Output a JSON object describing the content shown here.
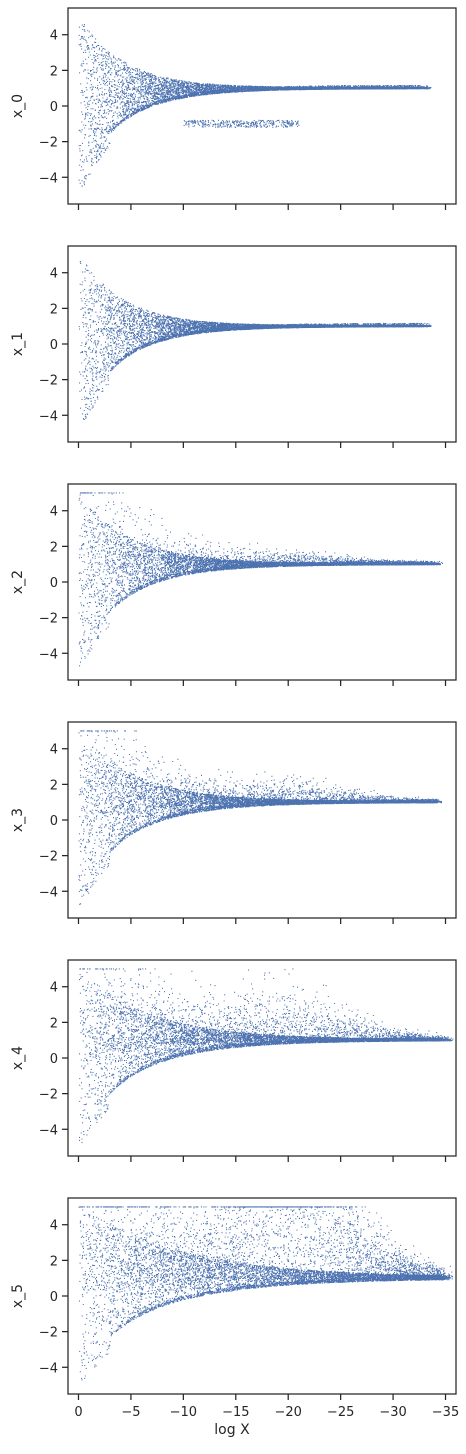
{
  "chart_data": {
    "type": "scatter",
    "layout": "6 vertically stacked panels with shared x-axis",
    "xlabel": "log X",
    "x_ticks": [
      0,
      -5,
      -10,
      -15,
      -20,
      -25,
      -30,
      -35
    ],
    "x_tick_labels": [
      "0",
      "−5",
      "−10",
      "−15",
      "−20",
      "−25",
      "−30",
      "−35"
    ],
    "xlim": [
      1,
      -36
    ],
    "y_ticks": [
      -4,
      -2,
      0,
      2,
      4
    ],
    "y_tick_labels": [
      "−4",
      "−2",
      "0",
      "2",
      "4"
    ],
    "ylim": [
      -5.5,
      5.5
    ],
    "grid": false,
    "marker_color": "#4c72b0",
    "panels": [
      {
        "ylabel": "x_0",
        "trend": {
          "end_x": -33,
          "end_y": 1.0,
          "spread_decay": 4.5,
          "upper_bump": 0.0,
          "lower_branch": true
        }
      },
      {
        "ylabel": "x_1",
        "trend": {
          "end_x": -33,
          "end_y": 1.0,
          "spread_decay": 4.5,
          "upper_bump": 0.0,
          "lower_branch": false
        }
      },
      {
        "ylabel": "x_2",
        "trend": {
          "end_x": -34,
          "end_y": 1.0,
          "spread_decay": 5.0,
          "upper_bump": 0.2,
          "lower_branch": false
        }
      },
      {
        "ylabel": "x_3",
        "trend": {
          "end_x": -34,
          "end_y": 1.0,
          "spread_decay": 5.5,
          "upper_bump": 0.4,
          "lower_branch": false
        }
      },
      {
        "ylabel": "x_4",
        "trend": {
          "end_x": -35,
          "end_y": 1.0,
          "spread_decay": 6.5,
          "upper_bump": 1.0,
          "lower_branch": false
        }
      },
      {
        "ylabel": "x_5",
        "trend": {
          "end_x": -35,
          "end_y": 1.0,
          "spread_decay": 9.0,
          "upper_bump": 3.5,
          "lower_branch": false
        }
      }
    ]
  }
}
